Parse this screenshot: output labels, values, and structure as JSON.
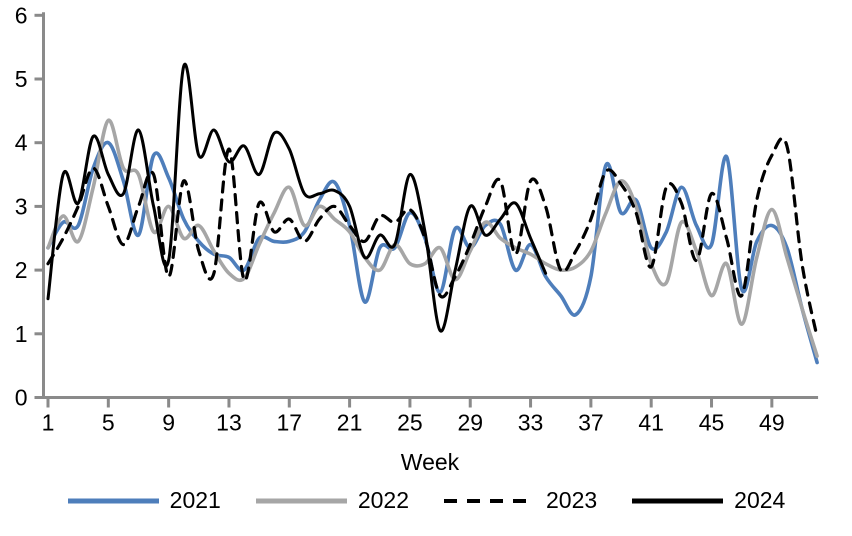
{
  "page": {
    "background": "#ffffff"
  },
  "chart_data": {
    "type": "line",
    "title": "",
    "xlabel": "Week",
    "ylabel": "",
    "xlim": [
      1,
      52
    ],
    "ylim": [
      0,
      6
    ],
    "grid": false,
    "legend_position": "bottom",
    "axis_color": "#8a8a8a",
    "text_color": "#000000",
    "y_ticks": [
      0,
      1,
      2,
      3,
      4,
      5,
      6
    ],
    "x_ticks": [
      1,
      5,
      9,
      13,
      17,
      21,
      25,
      29,
      33,
      37,
      41,
      45,
      49
    ],
    "x": [
      1,
      2,
      3,
      4,
      5,
      6,
      7,
      8,
      9,
      10,
      11,
      12,
      13,
      14,
      15,
      16,
      17,
      18,
      19,
      20,
      21,
      22,
      23,
      24,
      25,
      26,
      27,
      28,
      29,
      30,
      31,
      32,
      33,
      34,
      35,
      36,
      37,
      38,
      39,
      40,
      41,
      42,
      43,
      44,
      45,
      46,
      47,
      48,
      49,
      50,
      51,
      52
    ],
    "series": [
      {
        "name": "2021",
        "color": "#4e7ebb",
        "dash": null,
        "width": 3.6,
        "smooth": true,
        "values": [
          2.35,
          2.75,
          2.7,
          3.6,
          4.0,
          3.4,
          2.55,
          3.8,
          3.45,
          2.8,
          2.45,
          2.25,
          2.2,
          2.0,
          2.5,
          2.45,
          2.45,
          2.6,
          3.1,
          3.38,
          2.7,
          1.5,
          2.35,
          2.35,
          2.9,
          2.5,
          1.65,
          2.65,
          2.35,
          2.7,
          2.72,
          2.0,
          2.4,
          1.9,
          1.6,
          1.3,
          1.9,
          3.65,
          2.9,
          3.1,
          2.35,
          2.6,
          3.3,
          2.7,
          2.4,
          3.78,
          1.7,
          2.45,
          2.7,
          2.35,
          1.4,
          0.55
        ]
      },
      {
        "name": "2022",
        "color": "#a6a6a6",
        "dash": null,
        "width": 3.6,
        "smooth": true,
        "values": [
          2.35,
          2.85,
          2.45,
          3.3,
          4.35,
          3.6,
          3.5,
          2.6,
          3.0,
          2.5,
          2.7,
          2.3,
          1.95,
          1.87,
          2.4,
          2.9,
          3.3,
          2.7,
          3.0,
          2.8,
          2.6,
          2.2,
          2.0,
          2.4,
          2.1,
          2.1,
          2.35,
          1.85,
          2.3,
          2.75,
          2.5,
          2.35,
          2.25,
          2.1,
          2.0,
          2.05,
          2.3,
          2.9,
          3.4,
          3.0,
          2.1,
          1.8,
          2.75,
          2.3,
          1.6,
          2.1,
          1.15,
          2.2,
          2.95,
          2.2,
          1.4,
          0.65
        ]
      },
      {
        "name": "2023",
        "color": "#000000",
        "dash": "10,8",
        "width": 3.2,
        "smooth": true,
        "values": [
          2.1,
          2.5,
          3.0,
          3.6,
          3.0,
          2.4,
          3.0,
          3.5,
          1.9,
          3.4,
          2.3,
          1.95,
          3.9,
          1.85,
          3.05,
          2.6,
          2.8,
          2.45,
          2.8,
          3.0,
          2.7,
          2.45,
          2.85,
          2.75,
          2.95,
          2.5,
          1.6,
          1.9,
          2.4,
          3.0,
          3.4,
          2.25,
          3.4,
          3.0,
          2.0,
          2.3,
          2.8,
          3.55,
          3.35,
          2.9,
          2.05,
          3.3,
          3.05,
          2.15,
          3.2,
          2.5,
          1.6,
          3.1,
          3.8,
          3.95,
          2.1,
          0.95
        ]
      },
      {
        "name": "2024",
        "color": "#000000",
        "dash": null,
        "width": 3.0,
        "smooth": true,
        "values": [
          1.55,
          3.5,
          3.05,
          4.1,
          3.5,
          3.2,
          4.2,
          3.0,
          2.15,
          5.2,
          3.8,
          4.2,
          3.7,
          3.95,
          3.5,
          4.15,
          3.9,
          3.2,
          3.2,
          3.25,
          3.0,
          2.2,
          2.55,
          2.4,
          3.5,
          2.6,
          1.05,
          2.0,
          3.0,
          2.55,
          2.8,
          3.05,
          2.5,
          1.95
        ]
      }
    ]
  }
}
